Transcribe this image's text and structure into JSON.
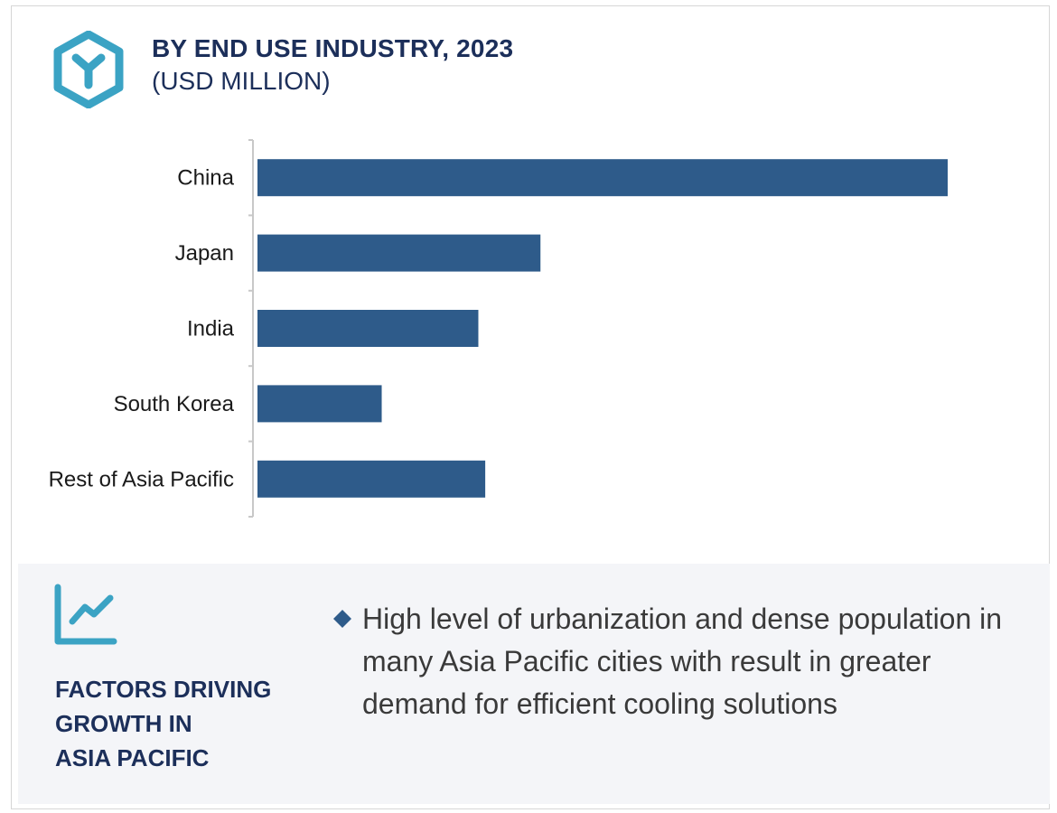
{
  "header": {
    "title": "BY END USE INDUSTRY, 2023",
    "subtitle": "(USD MILLION)",
    "icon": "hexagon-y-logo-icon"
  },
  "colors": {
    "bar": "#2e5b8a",
    "accent": "#3ba3c4",
    "title": "#1c2f5a",
    "panel_bg": "#f4f5f8"
  },
  "chart_data": {
    "type": "bar",
    "orientation": "horizontal",
    "title": "BY END USE INDUSTRY, 2023",
    "subtitle": "(USD MILLION)",
    "categories": [
      "China",
      "Japan",
      "India",
      "South Korea",
      "Rest of Asia Pacific"
    ],
    "values": [
      100,
      41,
      32,
      18,
      33
    ],
    "xlabel": "",
    "ylabel": "",
    "xlim": [
      0,
      100
    ],
    "value_axis_shown": false,
    "grid": false,
    "legend": "none"
  },
  "factors": {
    "icon": "trend-line-chart-icon",
    "title_lines": [
      "FACTORS DRIVING",
      "GROWTH IN",
      "ASIA PACIFIC"
    ],
    "bullet_icon": "diamond-bullet-icon",
    "bullet_text": "High level of urbanization and dense population in many Asia Pacific cities with result in greater demand for efficient cooling solutions"
  }
}
